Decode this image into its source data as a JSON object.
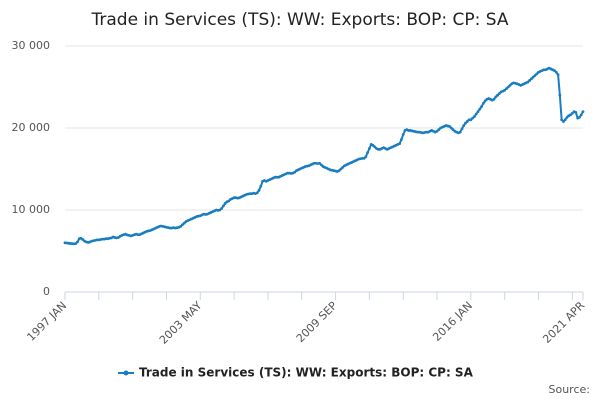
{
  "chart_data": {
    "type": "line",
    "title": "Trade in Services (TS): WW: Exports: BOP: CP: SA",
    "source": "Source:",
    "categories": [
      "1997 JAN",
      null,
      null,
      null,
      null,
      null,
      null,
      null,
      null,
      null,
      null,
      null,
      null,
      null,
      null,
      null,
      null,
      null,
      null,
      null,
      null,
      null,
      null,
      null,
      null,
      null,
      null,
      null,
      null,
      null,
      null,
      null,
      null,
      null,
      null,
      null,
      null,
      null,
      null,
      null,
      null,
      null,
      null,
      null,
      null,
      null,
      null,
      null,
      null,
      null,
      null,
      null,
      null,
      null,
      null,
      null,
      null,
      null,
      null,
      null,
      null,
      null,
      null,
      null,
      null,
      null,
      null,
      null,
      null,
      null,
      null,
      null,
      null,
      null,
      null,
      null,
      "2003 MAY",
      null,
      null,
      null,
      null,
      null,
      null,
      null,
      null,
      null,
      null,
      null,
      null,
      null,
      null,
      null,
      null,
      null,
      null,
      null,
      null,
      null,
      null,
      null,
      null,
      null,
      null,
      null,
      null,
      null,
      null,
      null,
      null,
      null,
      null,
      null,
      null,
      null,
      null,
      null,
      null,
      null,
      null,
      null,
      null,
      null,
      null,
      null,
      null,
      null,
      null,
      null,
      null,
      null,
      null,
      null,
      null,
      null,
      null,
      null,
      null,
      null,
      null,
      null,
      null,
      null,
      null,
      null,
      null,
      null,
      null,
      null,
      null,
      null,
      null,
      null,
      "2009 SEP",
      null,
      null,
      null,
      null,
      null,
      null,
      null,
      null,
      null,
      null,
      null,
      null,
      null,
      null,
      null,
      null,
      null,
      null,
      null,
      null,
      null,
      null,
      null,
      null,
      null,
      null,
      null,
      null,
      null,
      null,
      null,
      null,
      null,
      null,
      null,
      null,
      null,
      null,
      null,
      null,
      null,
      null,
      null,
      null,
      null,
      null,
      null,
      null,
      null,
      null,
      null,
      null,
      null,
      null,
      null,
      null,
      null,
      null,
      null,
      null,
      null,
      null,
      null,
      null,
      null,
      null,
      null,
      null,
      null,
      null,
      null,
      null,
      null,
      null,
      null,
      "2016 JAN",
      null,
      null,
      null,
      null,
      null,
      null,
      null,
      null,
      null,
      null,
      null,
      null,
      null,
      null,
      null,
      null,
      null,
      null,
      null,
      null,
      null,
      null,
      null,
      null,
      null,
      null,
      null,
      null,
      null,
      null,
      null,
      null,
      null,
      null,
      null,
      null,
      null,
      null,
      null,
      null,
      null,
      null,
      null,
      null,
      null,
      null,
      null,
      null,
      null,
      null,
      null,
      null,
      null,
      null,
      null,
      null,
      null,
      null,
      null,
      null,
      null,
      null,
      "2021 APR"
    ],
    "series": [
      {
        "name": "Trade in Services (TS): WW: Exports: BOP: CP: SA",
        "color": "#1a7dc0",
        "values": [
          6000,
          5980,
          5950,
          5920,
          5900,
          5880,
          5900,
          6100,
          6500,
          6550,
          6400,
          6200,
          6100,
          6050,
          6100,
          6200,
          6250,
          6300,
          6350,
          6350,
          6400,
          6450,
          6450,
          6500,
          6500,
          6550,
          6600,
          6700,
          6650,
          6600,
          6650,
          6800,
          6900,
          7000,
          7050,
          6950,
          6900,
          6850,
          6900,
          7000,
          7050,
          7000,
          7000,
          7100,
          7200,
          7300,
          7400,
          7450,
          7500,
          7600,
          7700,
          7800,
          7900,
          8000,
          8050,
          8000,
          7950,
          7900,
          7850,
          7800,
          7800,
          7850,
          7800,
          7850,
          7900,
          8000,
          8200,
          8400,
          8600,
          8700,
          8800,
          8900,
          9000,
          9100,
          9200,
          9250,
          9300,
          9400,
          9500,
          9450,
          9500,
          9600,
          9700,
          9800,
          9900,
          10000,
          9950,
          10000,
          10200,
          10500,
          10800,
          11000,
          11100,
          11300,
          11400,
          11500,
          11500,
          11450,
          11500,
          11600,
          11700,
          11800,
          11900,
          11950,
          12000,
          12000,
          12050,
          12000,
          12100,
          12400,
          12900,
          13500,
          13600,
          13500,
          13600,
          13700,
          13800,
          13900,
          14000,
          14000,
          14000,
          14100,
          14200,
          14300,
          14400,
          14500,
          14500,
          14450,
          14500,
          14600,
          14800,
          14900,
          15000,
          15100,
          15200,
          15300,
          15350,
          15400,
          15500,
          15600,
          15700,
          15700,
          15650,
          15700,
          15500,
          15300,
          15200,
          15100,
          15000,
          14900,
          14850,
          14800,
          14750,
          14700,
          14800,
          15000,
          15200,
          15400,
          15500,
          15600,
          15700,
          15800,
          15900,
          16000,
          16100,
          16200,
          16250,
          16300,
          16300,
          16500,
          17000,
          17500,
          18000,
          17900,
          17700,
          17500,
          17400,
          17400,
          17500,
          17600,
          17500,
          17400,
          17500,
          17600,
          17700,
          17800,
          17900,
          18000,
          18100,
          18600,
          19200,
          19700,
          19800,
          19700,
          19700,
          19650,
          19600,
          19550,
          19500,
          19500,
          19450,
          19400,
          19450,
          19500,
          19500,
          19600,
          19700,
          19600,
          19500,
          19600,
          19800,
          20000,
          20100,
          20200,
          20300,
          20250,
          20200,
          20000,
          19800,
          19600,
          19500,
          19400,
          19500,
          19900,
          20300,
          20600,
          20800,
          21000,
          21000,
          21200,
          21400,
          21700,
          22000,
          22300,
          22600,
          23000,
          23300,
          23500,
          23600,
          23500,
          23400,
          23500,
          23800,
          24000,
          24200,
          24400,
          24500,
          24600,
          24800,
          25000,
          25200,
          25400,
          25500,
          25450,
          25400,
          25300,
          25200,
          25300,
          25400,
          25500,
          25600,
          25800,
          26000,
          26200,
          26400,
          26600,
          26800,
          26900,
          27000,
          27100,
          27100,
          27200,
          27300,
          27200,
          27100,
          27000,
          26800,
          26500,
          24000,
          21000,
          20800,
          21000,
          21300,
          21500,
          21600,
          21800,
          22000,
          21900,
          21200,
          21300,
          21600,
          22000
        ]
      }
    ],
    "ylim": [
      0,
      30000
    ],
    "yticks": [
      0,
      {
        "value": 10000,
        "label": "10 000"
      },
      {
        "value": 20000,
        "label": "20 000"
      },
      {
        "value": 30000,
        "label": "30 000"
      }
    ],
    "grid": true
  }
}
